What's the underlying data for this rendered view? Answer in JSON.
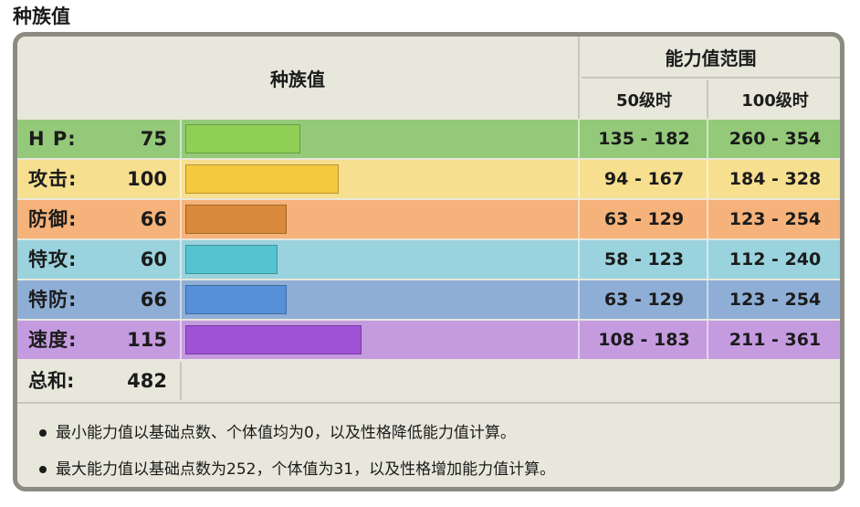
{
  "page_title": "种族值",
  "header": {
    "base_stats": "种族值",
    "range": "能力值范围",
    "level50": "50级时",
    "level100": "100级时"
  },
  "stats": [
    {
      "label": "H P:",
      "value": "75",
      "bar_fraction": 0.2941,
      "range50": "135 - 182",
      "range100": "260 - 354",
      "row_color": "#94c97a",
      "bar_color": "#8fcf55"
    },
    {
      "label": "攻击:",
      "value": "100",
      "bar_fraction": 0.3922,
      "range50": "94 - 167",
      "range100": "184 - 328",
      "row_color": "#f6df8f",
      "bar_color": "#f5c83e"
    },
    {
      "label": "防御:",
      "value": "66",
      "bar_fraction": 0.2588,
      "range50": "63 - 129",
      "range100": "123 - 254",
      "row_color": "#f5b27a",
      "bar_color": "#d98a3a"
    },
    {
      "label": "特攻:",
      "value": "60",
      "bar_fraction": 0.2353,
      "range50": "58 - 123",
      "range100": "112 - 240",
      "row_color": "#9ad3de",
      "bar_color": "#55c4d0"
    },
    {
      "label": "特防:",
      "value": "66",
      "bar_fraction": 0.2588,
      "range50": "63 - 129",
      "range100": "123 - 254",
      "row_color": "#8eaed6",
      "bar_color": "#5590d8"
    },
    {
      "label": "速度:",
      "value": "115",
      "bar_fraction": 0.451,
      "range50": "108 - 183",
      "range100": "211 - 361",
      "row_color": "#c59be0",
      "bar_color": "#a052d6"
    }
  ],
  "total": {
    "label": "总和:",
    "value": "482"
  },
  "notes": [
    "最小能力值以基础点数、个体值均为0，以及性格降低能力值计算。",
    "最大能力值以基础点数为252，个体值为31，以及性格增加能力值计算。"
  ]
}
